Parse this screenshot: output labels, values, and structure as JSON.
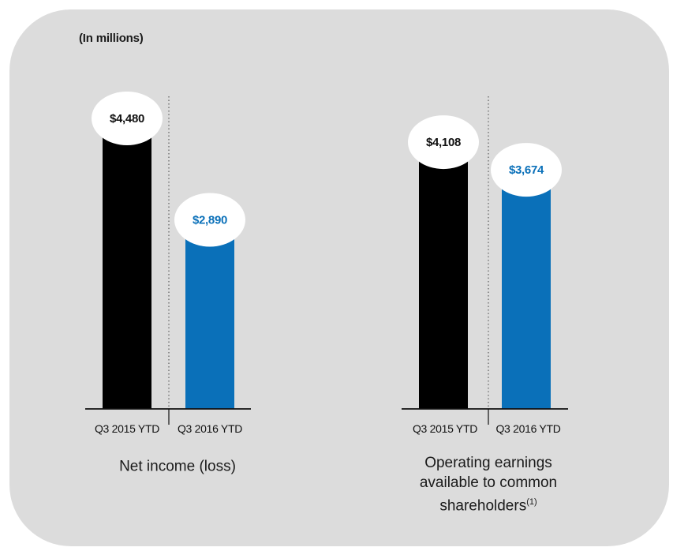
{
  "units_label": "(In millions)",
  "colors": {
    "prior_year": "#000000",
    "current_year": "#0a70b9",
    "panel": "#dcdcdc"
  },
  "chart_data": [
    {
      "type": "bar",
      "title": "Net income (loss)",
      "title_footnote": "",
      "categories": [
        "Q3 2015 YTD",
        "Q3 2016 YTD"
      ],
      "values": [
        4480,
        2890
      ],
      "value_labels": [
        "$4,480",
        "$2,890"
      ],
      "ylim": [
        0,
        4800
      ],
      "grid": false
    },
    {
      "type": "bar",
      "title": "Operating earnings available to common shareholders",
      "title_footnote": "(1)",
      "categories": [
        "Q3 2015 YTD",
        "Q3 2016 YTD"
      ],
      "values": [
        4108,
        3674
      ],
      "value_labels": [
        "$4,108",
        "$3,674"
      ],
      "ylim": [
        0,
        4800
      ],
      "grid": false
    }
  ]
}
